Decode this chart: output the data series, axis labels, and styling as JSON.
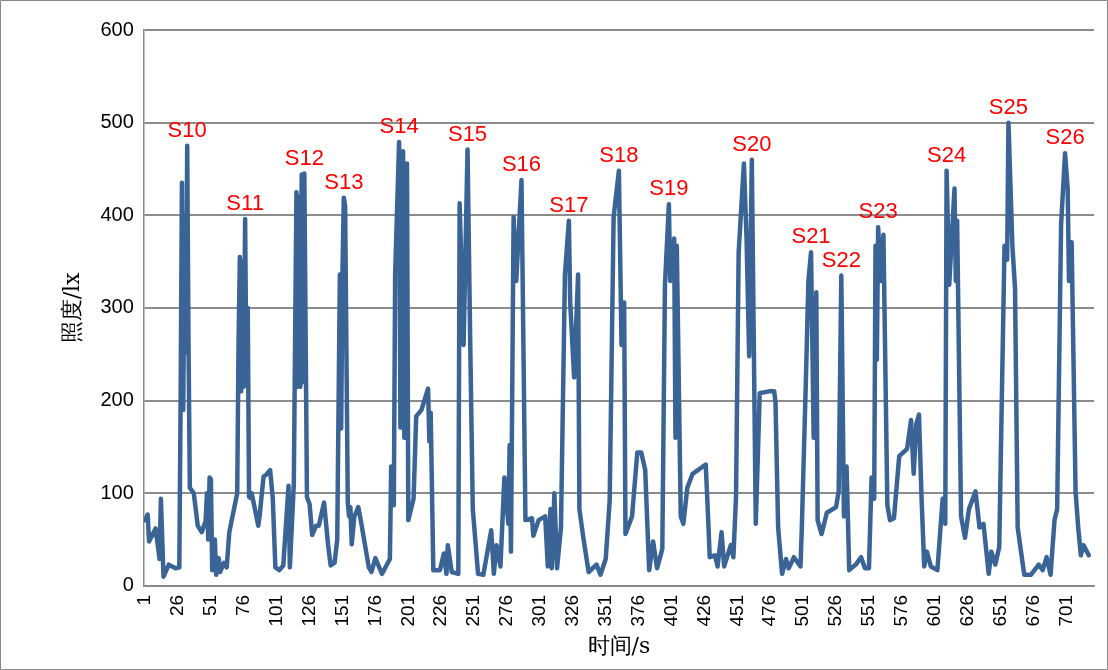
{
  "chart_data": {
    "type": "line",
    "xlabel": "时间/s",
    "ylabel": "照度/lx",
    "x": [
      1,
      3,
      4,
      9,
      12,
      13,
      15,
      19,
      24,
      27,
      28,
      29,
      30,
      31,
      32,
      33,
      34,
      35,
      38,
      41,
      44,
      47,
      48,
      49,
      50,
      51,
      52,
      53,
      54,
      55,
      57,
      58,
      61,
      63,
      65,
      71,
      72,
      73,
      74,
      75,
      76,
      77,
      78,
      79,
      80,
      81,
      82,
      87,
      88,
      91,
      93,
      96,
      98,
      100,
      103,
      106,
      110,
      111,
      114,
      116,
      117,
      118,
      119,
      120,
      121,
      122,
      124,
      126,
      128,
      131,
      133,
      137,
      140,
      142,
      145,
      147,
      149,
      150,
      151,
      152,
      153,
      155,
      156,
      157,
      158,
      160,
      163,
      165,
      171,
      173,
      176,
      181,
      187,
      188,
      190,
      191,
      194,
      195,
      197,
      198,
      200,
      201,
      205,
      207,
      211,
      216,
      217,
      218,
      220,
      225,
      228,
      230,
      231,
      234,
      239,
      240,
      243,
      246,
      248,
      250,
      254,
      258,
      264,
      266,
      268,
      271,
      274,
      277,
      278,
      279,
      281,
      283,
      287,
      290,
      295,
      296,
      300,
      305,
      307,
      309,
      310,
      312,
      314,
      317,
      320,
      323,
      324,
      327,
      330,
      331,
      334,
      338,
      344,
      347,
      351,
      354,
      357,
      361,
      363,
      365,
      366,
      371,
      375,
      378,
      381,
      384,
      387,
      390,
      394,
      396,
      399,
      400,
      403,
      404,
      405,
      408,
      410,
      413,
      417,
      427,
      429,
      430,
      434,
      436,
      439,
      441,
      446,
      448,
      450,
      452,
      456,
      458,
      460,
      462,
      465,
      467,
      468,
      475,
      479,
      480,
      482,
      485,
      488,
      490,
      494,
      499,
      500,
      503,
      505,
      507,
      509,
      511,
      512,
      515,
      519,
      526,
      528,
      530,
      532,
      534,
      536,
      541,
      545,
      548,
      551,
      553,
      555,
      556,
      557,
      558,
      560,
      562,
      565,
      567,
      570,
      574,
      580,
      583,
      585,
      587,
      589,
      591,
      593,
      595,
      598,
      603,
      607,
      609,
      610,
      612,
      616,
      617,
      618,
      621,
      624,
      627,
      632,
      635,
      638,
      642,
      644,
      647,
      650,
      654,
      656,
      657,
      660,
      662,
      664,
      669,
      674,
      680,
      683,
      686,
      689,
      692,
      694,
      697,
      700,
      702,
      703,
      705,
      708,
      710,
      712,
      714,
      718
    ],
    "values": [
      71,
      77,
      48,
      62,
      29,
      94,
      10,
      23,
      19,
      20,
      200,
      435,
      190,
      400,
      252,
      475,
      260,
      106,
      100,
      65,
      58,
      70,
      100,
      50,
      117,
      115,
      17,
      22,
      50,
      12,
      30,
      15,
      25,
      20,
      58,
      100,
      260,
      355,
      210,
      350,
      215,
      396,
      220,
      300,
      96,
      95,
      100,
      65,
      75,
      118,
      120,
      125,
      95,
      20,
      17,
      22,
      108,
      20,
      110,
      425,
      215,
      420,
      215,
      444,
      220,
      445,
      96,
      88,
      55,
      65,
      65,
      90,
      45,
      22,
      25,
      50,
      336,
      170,
      340,
      419,
      410,
      90,
      75,
      85,
      45,
      75,
      85,
      70,
      20,
      15,
      30,
      13,
      29,
      129,
      87,
      336,
      479,
      171,
      469,
      160,
      456,
      71,
      94,
      183,
      190,
      213,
      156,
      187,
      17,
      17,
      35,
      13,
      44,
      15,
      13,
      413,
      260,
      471,
      267,
      83,
      13,
      12,
      60,
      13,
      44,
      21,
      117,
      67,
      152,
      37,
      398,
      329,
      438,
      71,
      73,
      54,
      71,
      75,
      21,
      83,
      19,
      100,
      19,
      63,
      336,
      394,
      306,
      225,
      336,
      83,
      52,
      15,
      23,
      12,
      29,
      92,
      398,
      448,
      260,
      306,
      56,
      75,
      144,
      144,
      125,
      17,
      48,
      19,
      40,
      325,
      412,
      329,
      375,
      160,
      367,
      75,
      67,
      106,
      121,
      131,
      67,
      31,
      33,
      21,
      58,
      21,
      44,
      31,
      96,
      360,
      456,
      375,
      248,
      460,
      67,
      160,
      208,
      210,
      210,
      198,
      63,
      13,
      29,
      19,
      31,
      21,
      63,
      217,
      329,
      360,
      160,
      317,
      71,
      56,
      79,
      85,
      102,
      335,
      75,
      129,
      17,
      23,
      31,
      19,
      19,
      117,
      94,
      367,
      244,
      387,
      329,
      379,
      87,
      71,
      73,
      140,
      148,
      179,
      121,
      175,
      185,
      94,
      21,
      37,
      21,
      17,
      94,
      67,
      448,
      325,
      429,
      329,
      394,
      75,
      52,
      83,
      102,
      63,
      67,
      13,
      37,
      23,
      42,
      367,
      352,
      500,
      367,
      321,
      63,
      12,
      12,
      23,
      17,
      31,
      12,
      71,
      83,
      390,
      467,
      429,
      329,
      371,
      102,
      63,
      33,
      44,
      33
    ],
    "color": "#3a6496",
    "xlim": [
      0,
      722
    ],
    "xticks": [
      1,
      26,
      51,
      76,
      101,
      126,
      151,
      176,
      201,
      226,
      251,
      276,
      301,
      326,
      351,
      376,
      401,
      426,
      451,
      476,
      501,
      526,
      551,
      576,
      601,
      626,
      651,
      676,
      701
    ],
    "ylim": [
      0,
      600
    ],
    "yticks": [
      0,
      100,
      200,
      300,
      400,
      500,
      600
    ],
    "grid": "y",
    "legend": false,
    "marker": "none",
    "annotations": [
      {
        "text": "S10",
        "x": 33,
        "y": 475
      },
      {
        "text": "S11",
        "x": 77,
        "y": 396
      },
      {
        "text": "S12",
        "x": 122,
        "y": 445
      },
      {
        "text": "S13",
        "x": 152,
        "y": 419
      },
      {
        "text": "S14",
        "x": 194,
        "y": 479
      },
      {
        "text": "S15",
        "x": 246,
        "y": 471
      },
      {
        "text": "S16",
        "x": 287,
        "y": 438
      },
      {
        "text": "S17",
        "x": 323,
        "y": 394
      },
      {
        "text": "S18",
        "x": 361,
        "y": 448
      },
      {
        "text": "S19",
        "x": 399,
        "y": 412
      },
      {
        "text": "S20",
        "x": 462,
        "y": 460
      },
      {
        "text": "S21",
        "x": 507,
        "y": 360
      },
      {
        "text": "S22",
        "x": 530,
        "y": 335
      },
      {
        "text": "S23",
        "x": 558,
        "y": 387
      },
      {
        "text": "S24",
        "x": 610,
        "y": 448
      },
      {
        "text": "S25",
        "x": 657,
        "y": 500
      },
      {
        "text": "S26",
        "x": 700,
        "y": 467
      }
    ]
  }
}
